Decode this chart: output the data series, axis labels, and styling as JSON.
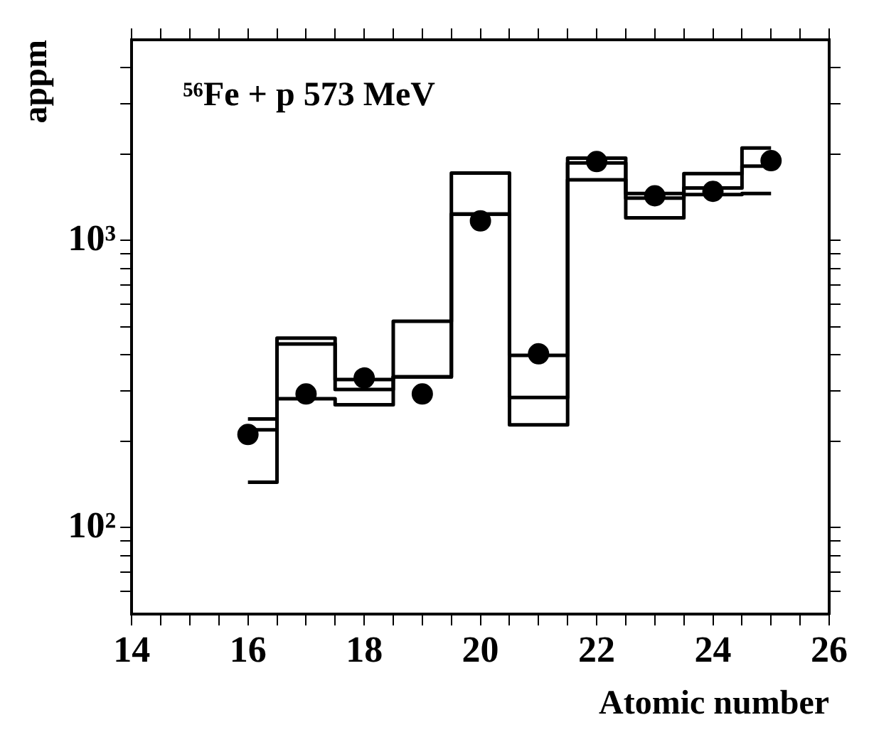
{
  "chart_data": {
    "type": "step",
    "title": "⁵⁶Fe + p 573 MeV",
    "xlabel": "Atomic number",
    "ylabel": "appm",
    "log": "y",
    "grid": false,
    "x": [
      16,
      17,
      18,
      19,
      20,
      21,
      22,
      23,
      24,
      25
    ],
    "series": [
      {
        "color": "#000000",
        "values": [
          239,
          457,
          328,
          523,
          1717,
          398,
          1937,
          1457,
          1711,
          2100
        ]
      },
      {
        "color": "#000000",
        "values": [
          219,
          436,
          303,
          335,
          1236,
          284,
          1862,
          1405,
          1523,
          1815
        ]
      },
      {
        "color": "#000000",
        "values": [
          144,
          281,
          268,
          335,
          1236,
          228,
          1626,
          1200,
          1446,
          1457
        ]
      },
      {
        "type": "scatter",
        "marker": "circle",
        "color": "#000000",
        "values": [
          211,
          292,
          332,
          292,
          1170,
          403,
          1883,
          1431,
          1483,
          1897
        ]
      }
    ],
    "xlim": [
      14,
      26
    ],
    "ylim": [
      50,
      5000
    ],
    "xticks": [
      14,
      {
        "value": 14.5,
        "label": null
      },
      {
        "value": 15,
        "label": null
      },
      {
        "value": 15.5,
        "label": null
      },
      16,
      {
        "value": 16.5,
        "label": null
      },
      {
        "value": 17,
        "label": null
      },
      {
        "value": 17.5,
        "label": null
      },
      18,
      {
        "value": 18.5,
        "label": null
      },
      {
        "value": 19,
        "label": null
      },
      {
        "value": 19.5,
        "label": null
      },
      20,
      {
        "value": 20.5,
        "label": null
      },
      {
        "value": 21,
        "label": null
      },
      {
        "value": 21.5,
        "label": null
      },
      22,
      {
        "value": 22.5,
        "label": null
      },
      {
        "value": 23,
        "label": null
      },
      {
        "value": 23.5,
        "label": null
      },
      24,
      {
        "value": 24.5,
        "label": null
      },
      {
        "value": 25,
        "label": null
      },
      {
        "value": 25.5,
        "label": null
      },
      26
    ],
    "yticks": [
      {
        "value": 60,
        "label": null
      },
      {
        "value": 70,
        "label": null
      },
      {
        "value": 80,
        "label": null
      },
      {
        "value": 90,
        "label": null
      },
      {
        "value": 100,
        "label": "10²"
      },
      {
        "value": 200,
        "label": null
      },
      {
        "value": 300,
        "label": null
      },
      {
        "value": 400,
        "label": null
      },
      {
        "value": 500,
        "label": null
      },
      {
        "value": 600,
        "label": null
      },
      {
        "value": 700,
        "label": null
      },
      {
        "value": 800,
        "label": null
      },
      {
        "value": 900,
        "label": null
      },
      {
        "value": 1000,
        "label": "10³"
      },
      {
        "value": 2000,
        "label": null
      },
      {
        "value": 3000,
        "label": null
      },
      {
        "value": 4000,
        "label": null
      }
    ]
  }
}
